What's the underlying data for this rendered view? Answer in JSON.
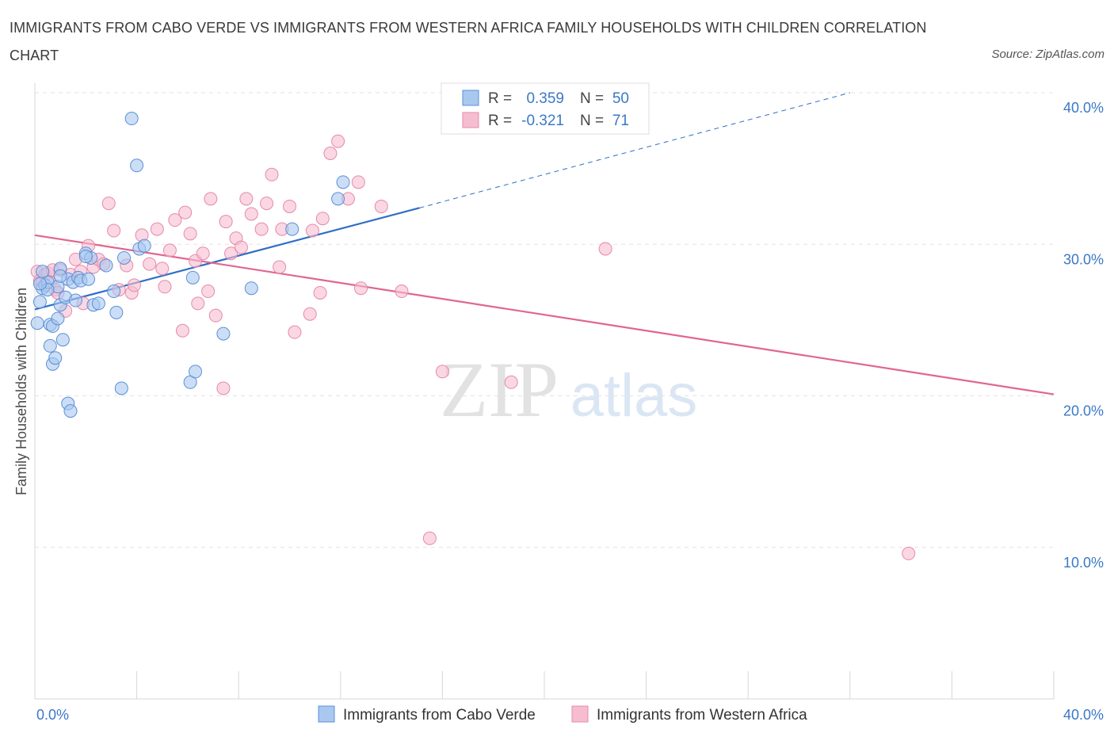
{
  "title": "IMMIGRANTS FROM CABO VERDE VS IMMIGRANTS FROM WESTERN AFRICA FAMILY HOUSEHOLDS WITH CHILDREN CORRELATION CHART",
  "source": "Source: ZipAtlas.com",
  "watermark": {
    "zip": "ZIP",
    "atlas": "atlas"
  },
  "legend": {
    "r_label": "R =",
    "n_label": "N =",
    "series1": {
      "r": "0.359",
      "n": "50"
    },
    "series2": {
      "r": "-0.321",
      "n": "71"
    }
  },
  "colors": {
    "blue_fill": "#a9c8f0",
    "blue_stroke": "#5b8fd6",
    "blue_line": "#2f6fc6",
    "pink_fill": "#f6bdd0",
    "pink_stroke": "#e58aa8",
    "pink_line": "#e06690"
  },
  "chart_data": {
    "type": "scatter",
    "xlabel": "",
    "ylabel": "Family Households with Children",
    "xlim": [
      0,
      40
    ],
    "ylim": [
      0,
      40
    ],
    "x_tick_labels": [
      "0.0%",
      "40.0%"
    ],
    "y_tick_labels": [
      "10.0%",
      "20.0%",
      "30.0%",
      "40.0%"
    ],
    "y_ticks": [
      10,
      20,
      30,
      40
    ],
    "bottom_legend": [
      "Immigrants from Cabo Verde",
      "Immigrants from Western Africa"
    ],
    "series": [
      {
        "name": "Immigrants from Cabo Verde",
        "color": "blue",
        "trend": {
          "x1": 0,
          "y1": 25.7,
          "x2": 15.1,
          "y2": 32.4,
          "dash_x2": 32,
          "dash_y2": 40
        },
        "points": [
          [
            0.1,
            24.8
          ],
          [
            0.2,
            26.2
          ],
          [
            0.3,
            27.1
          ],
          [
            0.4,
            27.3
          ],
          [
            0.5,
            27.5
          ],
          [
            0.6,
            24.7
          ],
          [
            0.6,
            23.3
          ],
          [
            0.7,
            24.6
          ],
          [
            0.7,
            22.1
          ],
          [
            0.8,
            22.5
          ],
          [
            0.9,
            25.1
          ],
          [
            0.9,
            27.2
          ],
          [
            1.0,
            26.0
          ],
          [
            1.0,
            28.4
          ],
          [
            1.1,
            23.7
          ],
          [
            1.2,
            26.5
          ],
          [
            1.3,
            27.7
          ],
          [
            1.3,
            19.5
          ],
          [
            1.4,
            19.0
          ],
          [
            1.5,
            27.5
          ],
          [
            1.6,
            26.3
          ],
          [
            1.7,
            27.8
          ],
          [
            1.8,
            27.6
          ],
          [
            2.0,
            29.4
          ],
          [
            2.1,
            27.7
          ],
          [
            2.2,
            29.1
          ],
          [
            2.3,
            26.0
          ],
          [
            2.5,
            26.1
          ],
          [
            2.8,
            28.6
          ],
          [
            3.1,
            26.9
          ],
          [
            3.2,
            25.5
          ],
          [
            3.5,
            29.1
          ],
          [
            3.4,
            20.5
          ],
          [
            3.8,
            38.3
          ],
          [
            4.0,
            35.2
          ],
          [
            4.1,
            29.7
          ],
          [
            4.3,
            29.9
          ],
          [
            6.1,
            20.9
          ],
          [
            6.2,
            27.8
          ],
          [
            6.3,
            21.6
          ],
          [
            7.4,
            24.1
          ],
          [
            8.5,
            27.1
          ],
          [
            10.1,
            31.0
          ],
          [
            11.9,
            33.0
          ],
          [
            12.1,
            34.1
          ],
          [
            0.3,
            28.2
          ],
          [
            0.5,
            27.0
          ],
          [
            1.0,
            27.9
          ],
          [
            2.0,
            29.2
          ],
          [
            0.2,
            27.4
          ]
        ]
      },
      {
        "name": "Immigrants from Western Africa",
        "color": "pink",
        "trend": {
          "x1": 0,
          "y1": 30.6,
          "x2": 40,
          "y2": 20.1
        },
        "points": [
          [
            0.1,
            28.2
          ],
          [
            0.2,
            27.6
          ],
          [
            0.3,
            27.5
          ],
          [
            0.4,
            28.0
          ],
          [
            0.5,
            28.1
          ],
          [
            0.6,
            27.5
          ],
          [
            0.7,
            28.3
          ],
          [
            0.8,
            27.0
          ],
          [
            0.9,
            26.8
          ],
          [
            1.0,
            28.3
          ],
          [
            1.2,
            25.6
          ],
          [
            1.4,
            28.0
          ],
          [
            1.6,
            29.0
          ],
          [
            1.8,
            28.2
          ],
          [
            1.9,
            26.1
          ],
          [
            2.1,
            29.9
          ],
          [
            2.3,
            28.5
          ],
          [
            2.5,
            29.0
          ],
          [
            2.7,
            28.7
          ],
          [
            2.9,
            32.7
          ],
          [
            3.1,
            30.9
          ],
          [
            3.3,
            27.0
          ],
          [
            3.6,
            28.6
          ],
          [
            3.8,
            26.8
          ],
          [
            3.9,
            27.3
          ],
          [
            4.2,
            30.6
          ],
          [
            4.5,
            28.7
          ],
          [
            4.8,
            31.0
          ],
          [
            5.0,
            28.4
          ],
          [
            5.1,
            27.2
          ],
          [
            5.3,
            29.6
          ],
          [
            5.5,
            31.6
          ],
          [
            5.8,
            24.3
          ],
          [
            5.9,
            32.1
          ],
          [
            6.1,
            30.7
          ],
          [
            6.3,
            28.9
          ],
          [
            6.4,
            26.1
          ],
          [
            6.6,
            29.4
          ],
          [
            6.8,
            26.9
          ],
          [
            6.9,
            33.0
          ],
          [
            7.1,
            25.3
          ],
          [
            7.4,
            20.5
          ],
          [
            7.5,
            31.5
          ],
          [
            7.7,
            29.4
          ],
          [
            7.9,
            30.4
          ],
          [
            8.1,
            29.8
          ],
          [
            8.3,
            33.0
          ],
          [
            8.5,
            32.0
          ],
          [
            8.9,
            31.0
          ],
          [
            9.1,
            32.7
          ],
          [
            9.3,
            34.6
          ],
          [
            9.6,
            28.5
          ],
          [
            9.7,
            31.0
          ],
          [
            10.0,
            32.5
          ],
          [
            10.2,
            24.2
          ],
          [
            10.8,
            25.4
          ],
          [
            10.9,
            30.9
          ],
          [
            11.2,
            26.8
          ],
          [
            11.3,
            31.7
          ],
          [
            11.6,
            36.0
          ],
          [
            11.9,
            36.8
          ],
          [
            12.3,
            33.0
          ],
          [
            12.7,
            34.1
          ],
          [
            12.8,
            27.1
          ],
          [
            13.6,
            32.5
          ],
          [
            14.4,
            26.9
          ],
          [
            15.5,
            10.6
          ],
          [
            16.0,
            21.6
          ],
          [
            18.7,
            20.9
          ],
          [
            22.4,
            29.7
          ],
          [
            34.3,
            9.6
          ]
        ]
      }
    ]
  }
}
